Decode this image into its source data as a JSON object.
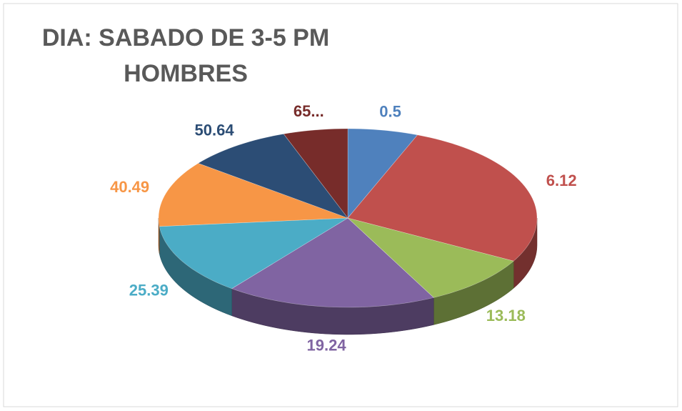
{
  "chart_data": {
    "type": "pie3d",
    "title": [
      "DIA: SABADO DE 3-5 PM",
      "HOMBRES"
    ],
    "categories": [
      "0.5",
      "6.12",
      "13.18",
      "19.24",
      "25.39",
      "40.49",
      "50.64",
      "65..."
    ],
    "values": [
      6,
      27,
      9.5,
      18,
      13,
      12,
      9,
      5.5
    ],
    "colors": [
      "#4f81bd",
      "#c0504d",
      "#9bbb59",
      "#8064a2",
      "#4bacc6",
      "#f79646",
      "#2c4d75",
      "#772c2a"
    ]
  }
}
